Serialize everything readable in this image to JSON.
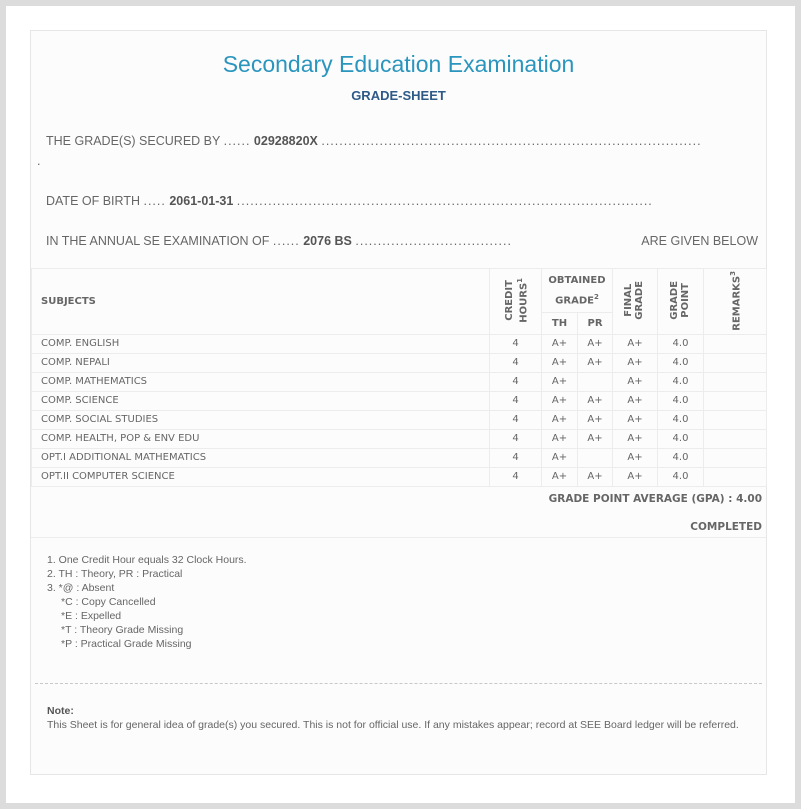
{
  "header": {
    "title": "Secondary Education Examination",
    "subtitle": "GRADE-SHEET"
  },
  "info": {
    "secured_by_label": "THE GRADE(S) SECURED BY",
    "secured_by_value": "02928820X",
    "dob_label": "DATE OF BIRTH",
    "dob_value": "2061-01-31",
    "exam_label": "IN THE ANNUAL SE EXAMINATION OF",
    "exam_value": "2076 BS",
    "exam_suffix": "ARE GIVEN BELOW"
  },
  "table": {
    "headers": {
      "subjects": "SUBJECTS",
      "credit_hours": "CREDIT HOURS",
      "credit_sup": "1",
      "obtained_grade": "OBTAINED GRADE",
      "obtained_sup": "2",
      "th": "TH",
      "pr": "PR",
      "final_grade": "FINAL GRADE",
      "grade_point": "GRADE POINT",
      "remarks": "REMARKS",
      "remarks_sup": "3"
    },
    "rows": [
      {
        "subject": "COMP. ENGLISH",
        "credit": "4",
        "th": "A+",
        "pr": "A+",
        "final": "A+",
        "gp": "4.0",
        "remarks": ""
      },
      {
        "subject": "COMP. NEPALI",
        "credit": "4",
        "th": "A+",
        "pr": "A+",
        "final": "A+",
        "gp": "4.0",
        "remarks": ""
      },
      {
        "subject": "COMP. MATHEMATICS",
        "credit": "4",
        "th": "A+",
        "pr": "",
        "final": "A+",
        "gp": "4.0",
        "remarks": ""
      },
      {
        "subject": "COMP. SCIENCE",
        "credit": "4",
        "th": "A+",
        "pr": "A+",
        "final": "A+",
        "gp": "4.0",
        "remarks": ""
      },
      {
        "subject": "COMP. SOCIAL STUDIES",
        "credit": "4",
        "th": "A+",
        "pr": "A+",
        "final": "A+",
        "gp": "4.0",
        "remarks": ""
      },
      {
        "subject": "COMP. HEALTH, POP & ENV EDU",
        "credit": "4",
        "th": "A+",
        "pr": "A+",
        "final": "A+",
        "gp": "4.0",
        "remarks": ""
      },
      {
        "subject": "OPT.I ADDITIONAL MATHEMATICS",
        "credit": "4",
        "th": "A+",
        "pr": "",
        "final": "A+",
        "gp": "4.0",
        "remarks": ""
      },
      {
        "subject": "OPT.II COMPUTER SCIENCE",
        "credit": "4",
        "th": "A+",
        "pr": "A+",
        "final": "A+",
        "gp": "4.0",
        "remarks": ""
      }
    ]
  },
  "summary": {
    "gpa": "GRADE POINT AVERAGE (GPA) : 4.00",
    "status": "COMPLETED"
  },
  "legend": [
    "1. One Credit Hour equals 32 Clock Hours.",
    "2. TH : Theory, PR : Practical",
    "3. *@ : Absent",
    "*C : Copy Cancelled",
    "*E : Expelled",
    "*T : Theory Grade Missing",
    "*P : Practical Grade Missing"
  ],
  "note": {
    "label": "Note:",
    "text": "This Sheet is for general idea of grade(s) you secured. This is not for official use. If any mistakes appear; record at SEE Board ledger will be referred."
  }
}
